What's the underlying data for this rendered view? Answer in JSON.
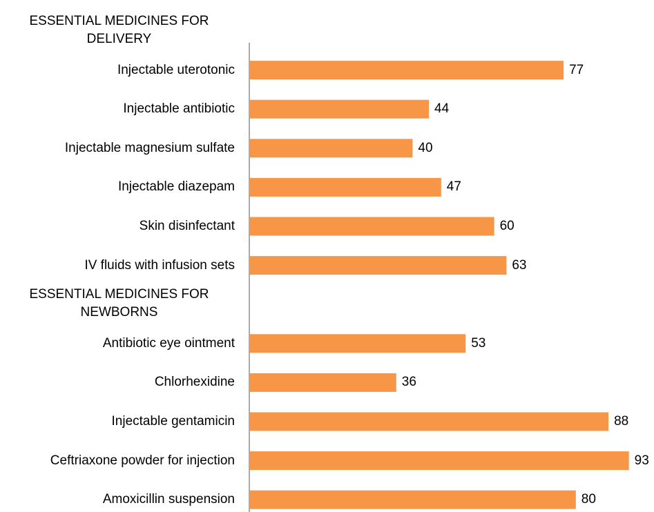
{
  "chart_data": {
    "type": "bar",
    "orientation": "horizontal",
    "color": "#f79646",
    "categories": [
      "ESSENTIAL MEDICINES FOR DELIVERY",
      "Injectable uterotonic",
      "Injectable antibiotic",
      "Injectable magnesium sulfate",
      "Injectable diazepam",
      "Skin disinfectant",
      "IV fluids with infusion sets",
      "ESSENTIAL MEDICINES FOR NEWBORNS",
      "Antibiotic eye ointment",
      "Chlorhexidine",
      "Injectable gentamicin",
      "Ceftriaxone powder for injection",
      "Amoxicillin suspension"
    ],
    "values": [
      null,
      77,
      44,
      40,
      47,
      60,
      63,
      null,
      53,
      36,
      88,
      93,
      80
    ]
  }
}
